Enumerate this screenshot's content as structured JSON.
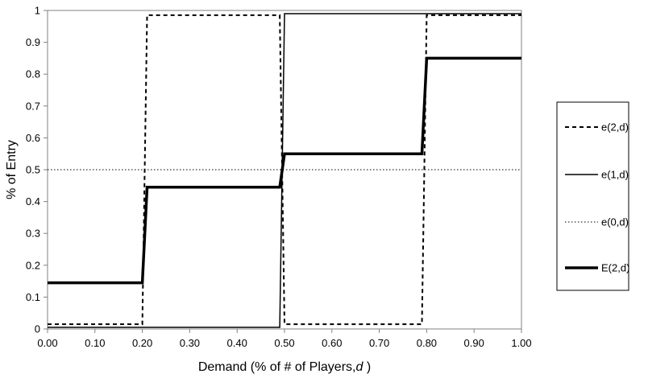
{
  "chart_data": {
    "type": "line",
    "title": "",
    "xlabel": "Demand (% of # of Players,",
    "xlabel_italic": "d",
    "xlabel_end": " )",
    "ylabel": "% of Entry",
    "xlim": [
      0,
      1
    ],
    "ylim": [
      0,
      1
    ],
    "x_ticks": [
      "0.00",
      "0.10",
      "0.20",
      "0.30",
      "0.40",
      "0.50",
      "0.60",
      "0.70",
      "0.80",
      "0.90",
      "1.00"
    ],
    "y_ticks": [
      "0",
      "0.1",
      "0.2",
      "0.3",
      "0.4",
      "0.5",
      "0.6",
      "0.7",
      "0.8",
      "0.9",
      "1"
    ],
    "grid": false,
    "legend_position": "right",
    "series": [
      {
        "name": "e(2,d)",
        "style": "dashed",
        "color": "#000000",
        "points": [
          [
            0,
            0.015
          ],
          [
            0.2,
            0.015
          ],
          [
            0.21,
            0.985
          ],
          [
            0.49,
            0.985
          ],
          [
            0.5,
            0.015
          ],
          [
            0.79,
            0.015
          ],
          [
            0.8,
            0.985
          ],
          [
            1.0,
            0.985
          ]
        ]
      },
      {
        "name": "e(1,d)",
        "style": "solid",
        "color": "#000000",
        "points": [
          [
            0,
            0.005
          ],
          [
            0.49,
            0.005
          ],
          [
            0.5,
            0.99
          ],
          [
            1.0,
            0.99
          ]
        ]
      },
      {
        "name": "e(0,d)",
        "style": "dotted",
        "color": "#000000",
        "points": [
          [
            0,
            0.5
          ],
          [
            1.0,
            0.5
          ]
        ]
      },
      {
        "name": "E(2,d)",
        "style": "thick",
        "color": "#000000",
        "points": [
          [
            0,
            0.145
          ],
          [
            0.2,
            0.145
          ],
          [
            0.21,
            0.445
          ],
          [
            0.49,
            0.445
          ],
          [
            0.5,
            0.55
          ],
          [
            0.79,
            0.55
          ],
          [
            0.8,
            0.85
          ],
          [
            1.0,
            0.85
          ]
        ]
      }
    ]
  }
}
